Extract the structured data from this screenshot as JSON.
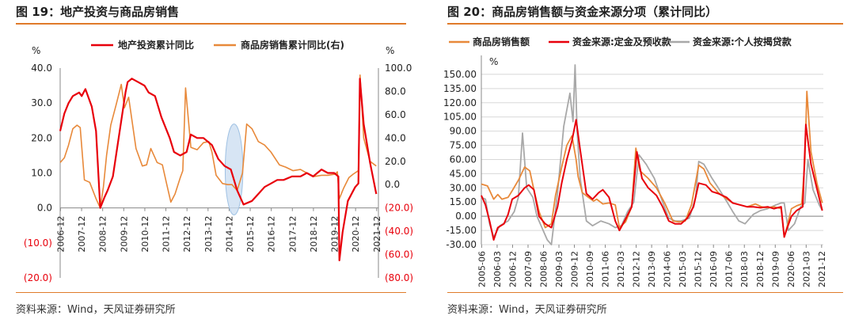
{
  "colors": {
    "red": "#e8000b",
    "orange": "#e8893a",
    "gray": "#a8a8a8",
    "neg_text": "#e8000b",
    "rule": "#e07b2a",
    "highlight": "#c9dcf0"
  },
  "left": {
    "title": "图 19：地产投资与商品房销售",
    "source": "资料来源：Wind，天风证券研究所",
    "axis_unit_left": "%",
    "axis_unit_right": "%"
  },
  "right": {
    "title": "图 20：商品房销售额与资金来源分项（累计同比）",
    "source": "资料来源：Wind，天风证券研究所",
    "axis_unit": "%"
  },
  "chart_data": [
    {
      "type": "line",
      "legend_position": "top",
      "grid": false,
      "y_left": {
        "lim": [
          -20,
          40
        ],
        "ticks": [
          40,
          30,
          20,
          10,
          0,
          -10,
          -20
        ],
        "labels": [
          "40.0",
          "30.0",
          "20.0",
          "10.0",
          "0.0",
          "(10.0)",
          "(20.0)"
        ]
      },
      "y_right": {
        "lim": [
          -80,
          100
        ],
        "ticks": [
          100,
          80,
          60,
          40,
          20,
          0,
          -20,
          -40,
          -60,
          -80
        ],
        "labels": [
          "100.0",
          "80.0",
          "60.0",
          "40.0",
          "20.0",
          "0.0",
          "(20.0)",
          "(40.0)",
          "(60.0)",
          "(80.0)"
        ]
      },
      "x_range": [
        2006.9,
        2022.0
      ],
      "x_ticks": [
        "2006-12",
        "2007-12",
        "2008-12",
        "2009-12",
        "2010-12",
        "2011-12",
        "2012-12",
        "2013-12",
        "2014-12",
        "2015-12",
        "2016-12",
        "2017-12",
        "2018-12",
        "2019-12",
        "2020-12",
        "2021-12"
      ],
      "highlight_ellipse": {
        "x_center": 2015.15,
        "y_center": 11,
        "x_half_width": 0.42,
        "y_half_height": 13
      },
      "series": [
        {
          "name": "地产投资累计同比",
          "axis": "left",
          "color": "red",
          "x": [
            2006.9,
            2007.1,
            2007.3,
            2007.5,
            2007.8,
            2007.92,
            2008.1,
            2008.4,
            2008.6,
            2008.8,
            2009.0,
            2009.15,
            2009.4,
            2009.6,
            2009.8,
            2010.0,
            2010.1,
            2010.3,
            2010.6,
            2010.9,
            2011.1,
            2011.4,
            2011.7,
            2012.1,
            2012.3,
            2012.6,
            2012.9,
            2013.1,
            2013.4,
            2013.7,
            2014.1,
            2014.4,
            2014.7,
            2015.0,
            2015.3,
            2015.6,
            2016.0,
            2016.3,
            2016.6,
            2016.9,
            2017.2,
            2017.5,
            2017.9,
            2018.3,
            2018.6,
            2018.9,
            2019.3,
            2019.6,
            2019.9,
            2020.1,
            2020.15,
            2020.3,
            2020.55,
            2020.9,
            2021.05,
            2021.12,
            2021.3,
            2021.6,
            2021.9
          ],
          "y": [
            22,
            27,
            30,
            32,
            33,
            32,
            34,
            29,
            22,
            0,
            3,
            5,
            9,
            17,
            25,
            33,
            36,
            37,
            36,
            35,
            33,
            32,
            26,
            20,
            16,
            15,
            16,
            21,
            20,
            20,
            18,
            14,
            12,
            11,
            5,
            1,
            2,
            4,
            6,
            7,
            8,
            8,
            9,
            9,
            10,
            9,
            11,
            10,
            10,
            9,
            -15,
            -7,
            2,
            6,
            7,
            37,
            24,
            13,
            4
          ]
        },
        {
          "name": "商品房销售累计同比(右)",
          "axis": "right",
          "color": "orange",
          "x": [
            2006.9,
            2007.1,
            2007.3,
            2007.5,
            2007.7,
            2007.85,
            2008.05,
            2008.3,
            2008.6,
            2008.8,
            2008.95,
            2009.1,
            2009.3,
            2009.55,
            2009.8,
            2009.95,
            2010.15,
            2010.5,
            2010.8,
            2011.0,
            2011.2,
            2011.5,
            2011.75,
            2011.95,
            2012.15,
            2012.35,
            2012.6,
            2012.72,
            2012.85,
            2013.1,
            2013.4,
            2013.7,
            2013.95,
            2014.1,
            2014.3,
            2014.6,
            2014.85,
            2015.05,
            2015.3,
            2015.55,
            2015.75,
            2016.0,
            2016.3,
            2016.6,
            2016.9,
            2017.3,
            2017.6,
            2017.95,
            2018.3,
            2018.6,
            2018.95,
            2019.3,
            2019.6,
            2019.95,
            2020.05,
            2020.15,
            2020.35,
            2020.6,
            2020.8,
            2021.05,
            2021.13,
            2021.3,
            2021.6,
            2021.9
          ],
          "y": [
            19,
            23,
            34,
            48,
            51,
            49,
            4,
            2,
            -12,
            -20,
            -2,
            25,
            51,
            68,
            86,
            66,
            75,
            31,
            16,
            17,
            31,
            19,
            17,
            1,
            -15,
            -8,
            6,
            12,
            83,
            32,
            30,
            36,
            37,
            28,
            8,
            1,
            0,
            0,
            -5,
            10,
            52,
            48,
            37,
            34,
            28,
            17,
            15,
            12,
            13,
            10,
            7,
            8,
            8,
            9,
            11,
            -12,
            -3,
            6,
            9,
            12,
            94,
            40,
            20,
            16
          ]
        }
      ]
    },
    {
      "type": "line",
      "legend_position": "top",
      "grid": true,
      "y": {
        "lim": [
          -30,
          165
        ],
        "ticks": [
          150,
          135,
          120,
          105,
          90,
          75,
          60,
          45,
          30,
          15,
          0,
          -15,
          -30
        ],
        "labels": [
          "150.00",
          "135.00",
          "120.00",
          "105.00",
          "90.00",
          "75.00",
          "60.00",
          "45.00",
          "30.00",
          "15.00",
          "0.00",
          "-15.00",
          "-30.00"
        ]
      },
      "x_range": [
        2005.4,
        2022.0
      ],
      "x_ticks": [
        "2005-06",
        "2006-03",
        "2006-12",
        "2007-09",
        "2008-06",
        "2009-03",
        "2009-12",
        "2010-09",
        "2011-06",
        "2012-03",
        "2012-12",
        "2013-09",
        "2014-06",
        "2015-03",
        "2015-12",
        "2016-09",
        "2017-06",
        "2018-03",
        "2018-12",
        "2019-09",
        "2020-06",
        "2021-03",
        "2021-12"
      ],
      "series": [
        {
          "name": "商品房销售额",
          "color": "orange",
          "x": [
            2005.4,
            2005.7,
            2006.0,
            2006.2,
            2006.4,
            2006.7,
            2006.9,
            2007.2,
            2007.5,
            2007.75,
            2007.95,
            2008.2,
            2008.5,
            2008.8,
            2009.0,
            2009.3,
            2009.55,
            2009.8,
            2010.0,
            2010.1,
            2010.3,
            2010.6,
            2010.85,
            2011.0,
            2011.3,
            2011.6,
            2011.9,
            2012.1,
            2012.4,
            2012.7,
            2012.9,
            2013.1,
            2013.5,
            2013.9,
            2014.3,
            2014.7,
            2015.0,
            2015.3,
            2015.6,
            2015.95,
            2016.2,
            2016.5,
            2016.9,
            2017.2,
            2017.6,
            2017.95,
            2018.3,
            2018.7,
            2019.0,
            2019.3,
            2019.6,
            2019.95,
            2020.1,
            2020.25,
            2020.45,
            2020.7,
            2020.95,
            2021.1,
            2021.2,
            2021.4,
            2021.7,
            2021.95
          ],
          "y": [
            34,
            32,
            18,
            23,
            18,
            20,
            27,
            38,
            52,
            48,
            28,
            5,
            -12,
            -8,
            22,
            52,
            75,
            85,
            60,
            42,
            25,
            20,
            16,
            18,
            13,
            14,
            12,
            -12,
            -6,
            10,
            72,
            48,
            40,
            30,
            14,
            -5,
            -6,
            -5,
            12,
            54,
            50,
            35,
            25,
            20,
            14,
            12,
            10,
            13,
            10,
            9,
            10,
            8,
            -22,
            -10,
            8,
            11,
            13,
            57,
            132,
            68,
            34,
            14
          ]
        },
        {
          "name": "资金来源:定金及预收款",
          "color": "red",
          "x": [
            2005.4,
            2005.6,
            2005.8,
            2006.0,
            2006.2,
            2006.5,
            2006.7,
            2006.9,
            2007.2,
            2007.5,
            2007.7,
            2007.95,
            2008.2,
            2008.5,
            2008.8,
            2009.1,
            2009.3,
            2009.55,
            2009.8,
            2010.0,
            2010.2,
            2010.5,
            2010.8,
            2011.1,
            2011.3,
            2011.6,
            2011.9,
            2012.1,
            2012.4,
            2012.7,
            2012.95,
            2013.2,
            2013.5,
            2013.9,
            2014.2,
            2014.5,
            2014.8,
            2015.1,
            2015.4,
            2015.7,
            2015.95,
            2016.3,
            2016.6,
            2016.9,
            2017.3,
            2017.6,
            2017.95,
            2018.3,
            2018.6,
            2018.95,
            2019.3,
            2019.6,
            2019.95,
            2020.1,
            2020.25,
            2020.45,
            2020.7,
            2021.0,
            2021.15,
            2021.4,
            2021.7,
            2021.95
          ],
          "y": [
            22,
            12,
            -5,
            -25,
            -12,
            -8,
            2,
            18,
            22,
            30,
            33,
            28,
            0,
            -8,
            -12,
            10,
            35,
            60,
            80,
            102,
            70,
            24,
            18,
            25,
            28,
            20,
            -5,
            -15,
            -3,
            10,
            68,
            40,
            30,
            22,
            10,
            -5,
            -8,
            -8,
            -2,
            10,
            35,
            33,
            26,
            24,
            20,
            14,
            12,
            10,
            10,
            9,
            10,
            8,
            10,
            -22,
            -12,
            0,
            6,
            10,
            97,
            55,
            28,
            6
          ]
        },
        {
          "name": "资金来源:个人按揭贷款",
          "color": "gray",
          "x": [
            2005.4,
            2005.6,
            2005.8,
            2006.0,
            2006.3,
            2006.7,
            2007.0,
            2007.2,
            2007.4,
            2007.6,
            2007.9,
            2008.1,
            2008.4,
            2008.6,
            2008.8,
            2009.1,
            2009.4,
            2009.7,
            2009.85,
            2009.95,
            2010.05,
            2010.2,
            2010.5,
            2010.8,
            2011.2,
            2011.6,
            2011.9,
            2012.2,
            2012.5,
            2012.8,
            2013.05,
            2013.4,
            2013.8,
            2014.2,
            2014.5,
            2014.8,
            2015.1,
            2015.5,
            2015.8,
            2015.95,
            2016.2,
            2016.6,
            2016.9,
            2017.3,
            2017.6,
            2017.9,
            2018.2,
            2018.6,
            2018.95,
            2019.3,
            2019.7,
            2019.95,
            2020.1,
            2020.3,
            2020.6,
            2020.9,
            2021.1,
            2021.25,
            2021.5,
            2021.8,
            2021.95
          ],
          "y": [
            20,
            18,
            -8,
            -22,
            -10,
            -5,
            5,
            20,
            88,
            30,
            20,
            0,
            -15,
            -25,
            -30,
            25,
            95,
            130,
            100,
            160,
            90,
            40,
            -5,
            -10,
            -5,
            -8,
            -12,
            -10,
            5,
            15,
            65,
            55,
            40,
            15,
            -2,
            -5,
            -5,
            -2,
            20,
            58,
            55,
            40,
            30,
            16,
            5,
            -5,
            -8,
            2,
            6,
            8,
            12,
            14,
            14,
            -15,
            -8,
            10,
            14,
            60,
            28,
            12,
            6
          ]
        }
      ]
    }
  ]
}
